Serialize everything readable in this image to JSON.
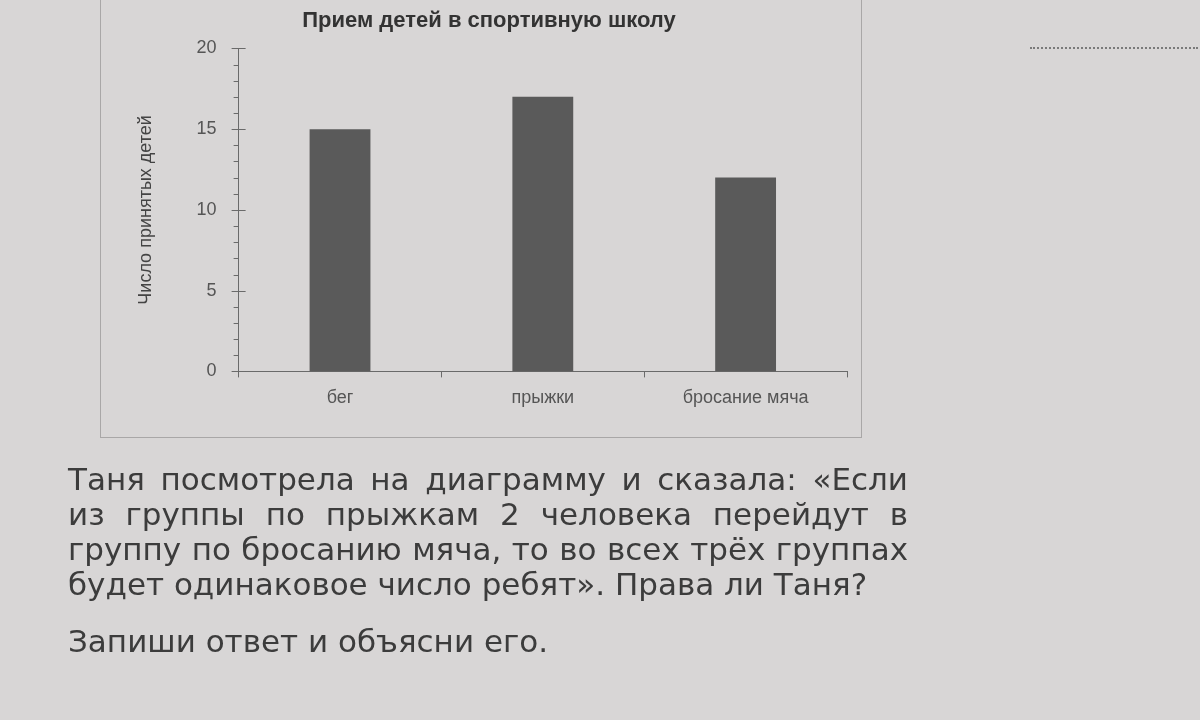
{
  "chart_data": {
    "type": "bar",
    "title": "Прием детей в спортивную школу",
    "ylabel": "Число принятых детей",
    "categories": [
      "бег",
      "прыжки",
      "бросание мяча"
    ],
    "values": [
      15,
      17,
      12
    ],
    "color": "#5a5a5a",
    "ylim": [
      0,
      20
    ],
    "yticks": [
      0,
      {
        "value": 1,
        "label": null
      },
      {
        "value": 2,
        "label": null
      },
      {
        "value": 3,
        "label": null
      },
      {
        "value": 4,
        "label": null
      },
      5,
      {
        "value": 6,
        "label": null
      },
      {
        "value": 7,
        "label": null
      },
      {
        "value": 8,
        "label": null
      },
      {
        "value": 9,
        "label": null
      },
      10,
      {
        "value": 11,
        "label": null
      },
      {
        "value": 12,
        "label": null
      },
      {
        "value": 13,
        "label": null
      },
      {
        "value": 14,
        "label": null
      },
      15,
      {
        "value": 16,
        "label": null
      },
      {
        "value": 17,
        "label": null
      },
      {
        "value": 18,
        "label": null
      },
      {
        "value": 19,
        "label": null
      },
      20
    ],
    "grid": false,
    "annotations": [
      "Таня посмотрела на диаграмму и сказала: «Если из группы по прыжкам 2 человека перейдут в группу по бросанию мяча, то во всех трёх группах будет одинаковое число ребят». Права ли Таня?",
      "Запиши ответ и объясни его."
    ]
  }
}
